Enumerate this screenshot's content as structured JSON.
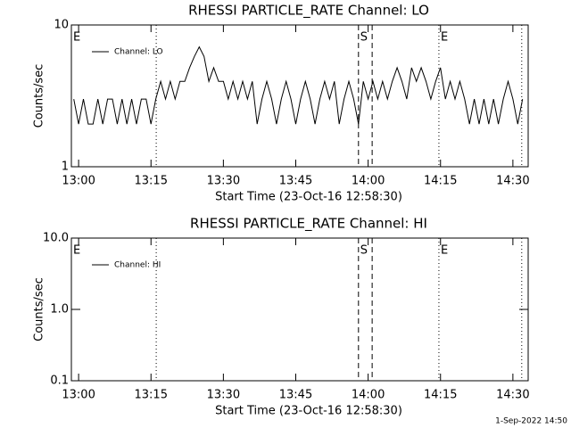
{
  "chart_data": [
    {
      "type": "line",
      "title": "RHESSI PARTICLE_RATE Channel: LO",
      "xlabel": "Start Time (23-Oct-16 12:58:30)",
      "ylabel": "Counts/sec",
      "log_y": true,
      "ylim": [
        1,
        10
      ],
      "yticks": [
        1,
        10
      ],
      "xlim": [
        "12:58:30",
        "14:33:10"
      ],
      "xticks": [
        "13:00",
        "13:15",
        "13:30",
        "13:45",
        "14:00",
        "14:15",
        "14:30"
      ],
      "legend": "upper left",
      "markers": [
        {
          "time": "12:58:30",
          "style": "dotted",
          "label": "E"
        },
        {
          "time": "13:16:05",
          "style": "dotted"
        },
        {
          "time": "13:58:00",
          "style": "dashed",
          "label": "S"
        },
        {
          "time": "14:00:50",
          "style": "dashed"
        },
        {
          "time": "14:14:40",
          "style": "dotted",
          "label": "E"
        },
        {
          "time": "14:31:50",
          "style": "dotted"
        }
      ],
      "x": [
        "12:59",
        "13:00",
        "13:01",
        "13:02",
        "13:03",
        "13:04",
        "13:05",
        "13:06",
        "13:07",
        "13:08",
        "13:09",
        "13:10",
        "13:11",
        "13:12",
        "13:13",
        "13:14",
        "13:15",
        "13:16",
        "13:17",
        "13:18",
        "13:19",
        "13:20",
        "13:21",
        "13:22",
        "13:23",
        "13:24",
        "13:25",
        "13:26",
        "13:27",
        "13:28",
        "13:29",
        "13:30",
        "13:31",
        "13:32",
        "13:33",
        "13:34",
        "13:35",
        "13:36",
        "13:37",
        "13:38",
        "13:39",
        "13:40",
        "13:41",
        "13:42",
        "13:43",
        "13:44",
        "13:45",
        "13:46",
        "13:47",
        "13:48",
        "13:49",
        "13:50",
        "13:51",
        "13:52",
        "13:53",
        "13:54",
        "13:55",
        "13:56",
        "13:57",
        "13:58",
        "13:59",
        "14:00",
        "14:01",
        "14:02",
        "14:03",
        "14:04",
        "14:05",
        "14:06",
        "14:07",
        "14:08",
        "14:09",
        "14:10",
        "14:11",
        "14:12",
        "14:13",
        "14:14",
        "14:15",
        "14:16",
        "14:17",
        "14:18",
        "14:19",
        "14:20",
        "14:21",
        "14:22",
        "14:23",
        "14:24",
        "14:25",
        "14:26",
        "14:27",
        "14:28",
        "14:29",
        "14:30",
        "14:31",
        "14:32"
      ],
      "series": [
        {
          "name": "Channel: LO",
          "color": "#000000",
          "values": [
            3,
            2,
            3,
            2,
            2,
            3,
            2,
            3,
            3,
            2,
            3,
            2,
            3,
            2,
            3,
            3,
            2,
            3,
            4,
            3,
            4,
            3,
            4,
            4,
            5,
            6,
            7,
            6,
            4,
            5,
            4,
            4,
            3,
            4,
            3,
            4,
            3,
            4,
            2,
            3,
            4,
            3,
            2,
            3,
            4,
            3,
            2,
            3,
            4,
            3,
            2,
            3,
            4,
            3,
            4,
            2,
            3,
            4,
            3,
            2,
            4,
            3,
            4,
            3,
            4,
            3,
            4,
            5,
            4,
            3,
            5,
            4,
            5,
            4,
            3,
            4,
            5,
            3,
            4,
            3,
            4,
            3,
            2,
            3,
            2,
            3,
            2,
            3,
            2,
            3,
            4,
            3,
            2,
            3
          ]
        }
      ]
    },
    {
      "type": "line",
      "title": "RHESSI PARTICLE_RATE Channel: HI",
      "xlabel": "Start Time (23-Oct-16 12:58:30)",
      "ylabel": "Counts/sec",
      "log_y": true,
      "ylim": [
        0.1,
        10
      ],
      "yticks": [
        0.1,
        {
          "value": 1,
          "label": "1.0"
        },
        {
          "value": 10,
          "label": "10.0"
        }
      ],
      "xlim": [
        "12:58:30",
        "14:33:10"
      ],
      "xticks": [
        "13:00",
        "13:15",
        "13:30",
        "13:45",
        "14:00",
        "14:15",
        "14:30"
      ],
      "legend": "upper left",
      "markers": [
        {
          "time": "12:58:30",
          "style": "dotted",
          "label": "E"
        },
        {
          "time": "13:16:05",
          "style": "dotted"
        },
        {
          "time": "13:58:00",
          "style": "dashed",
          "label": "S"
        },
        {
          "time": "14:00:50",
          "style": "dashed"
        },
        {
          "time": "14:14:40",
          "style": "dotted",
          "label": "E"
        },
        {
          "time": "14:31:50",
          "style": "dotted"
        }
      ],
      "series": [
        {
          "name": "Channel: HI",
          "color": "#000000"
        }
      ]
    }
  ],
  "footer": "1-Sep-2022 14:50"
}
